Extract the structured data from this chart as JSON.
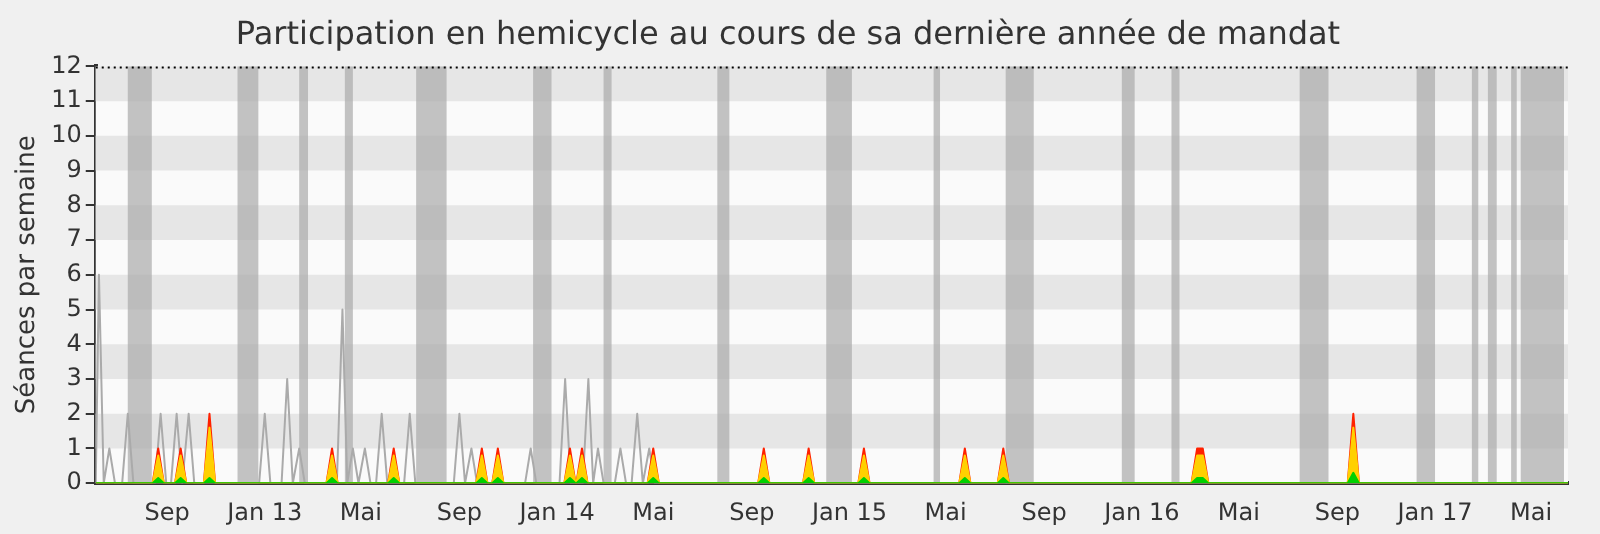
{
  "chart_data": {
    "type": "line",
    "title": "Participation en hemicycle au cours de sa dernière année de mandat",
    "ylabel": "Séances par semaine",
    "xlim": [
      "2012-06-04",
      "2017-06-16"
    ],
    "xticks": [
      {
        "value": "2012-09-01",
        "label": "Sep"
      },
      {
        "value": "2013-01-01",
        "label": "Jan 13"
      },
      {
        "value": "2013-05-01",
        "label": "Mai"
      },
      {
        "value": "2013-09-01",
        "label": "Sep"
      },
      {
        "value": "2014-01-01",
        "label": "Jan 14"
      },
      {
        "value": "2014-05-01",
        "label": "Mai"
      },
      {
        "value": "2014-09-01",
        "label": "Sep"
      },
      {
        "value": "2015-01-01",
        "label": "Jan 15"
      },
      {
        "value": "2015-05-01",
        "label": "Mai"
      },
      {
        "value": "2015-09-01",
        "label": "Sep"
      },
      {
        "value": "2016-01-01",
        "label": "Jan 16"
      },
      {
        "value": "2016-05-01",
        "label": "Mai"
      },
      {
        "value": "2016-09-01",
        "label": "Sep"
      },
      {
        "value": "2017-01-01",
        "label": "Jan 17"
      },
      {
        "value": "2017-05-01",
        "label": "Mai"
      }
    ],
    "ylim": [
      0,
      12
    ],
    "yticks": [
      0,
      1,
      2,
      3,
      4,
      5,
      6,
      7,
      8,
      9,
      10,
      11,
      12
    ],
    "grid": false,
    "legend": false,
    "marker": "none",
    "line_style": "solid",
    "bands": [
      {
        "axis": "y",
        "from": 11,
        "to": 12,
        "color": "#e6e6e6"
      },
      {
        "axis": "y",
        "from": 9,
        "to": 10,
        "color": "#e6e6e6"
      },
      {
        "axis": "y",
        "from": 7,
        "to": 8,
        "color": "#e6e6e6"
      },
      {
        "axis": "y",
        "from": 5,
        "to": 6,
        "color": "#e6e6e6"
      },
      {
        "axis": "y",
        "from": 3,
        "to": 4,
        "color": "#e6e6e6"
      },
      {
        "axis": "y",
        "from": 1,
        "to": 2,
        "color": "#e6e6e6"
      },
      {
        "axis": "x",
        "from": "2012-07-14",
        "to": "2012-08-13",
        "color": "#aaaaaa"
      },
      {
        "axis": "x",
        "from": "2012-11-28",
        "to": "2012-12-24",
        "color": "#aaaaaa"
      },
      {
        "axis": "x",
        "from": "2013-02-13",
        "to": "2013-02-24",
        "color": "#aaaaaa"
      },
      {
        "axis": "x",
        "from": "2013-04-11",
        "to": "2013-04-21",
        "color": "#aaaaaa"
      },
      {
        "axis": "x",
        "from": "2013-07-09",
        "to": "2013-08-16",
        "color": "#aaaaaa"
      },
      {
        "axis": "x",
        "from": "2013-12-02",
        "to": "2013-12-25",
        "color": "#aaaaaa"
      },
      {
        "axis": "x",
        "from": "2014-02-28",
        "to": "2014-03-10",
        "color": "#aaaaaa"
      },
      {
        "axis": "x",
        "from": "2014-07-20",
        "to": "2014-08-04",
        "color": "#aaaaaa"
      },
      {
        "axis": "x",
        "from": "2014-12-03",
        "to": "2015-01-04",
        "color": "#aaaaaa"
      },
      {
        "axis": "x",
        "from": "2015-04-16",
        "to": "2015-04-24",
        "color": "#aaaaaa"
      },
      {
        "axis": "x",
        "from": "2015-07-15",
        "to": "2015-08-19",
        "color": "#aaaaaa"
      },
      {
        "axis": "x",
        "from": "2015-12-07",
        "to": "2015-12-23",
        "color": "#aaaaaa"
      },
      {
        "axis": "x",
        "from": "2016-02-07",
        "to": "2016-02-17",
        "color": "#aaaaaa"
      },
      {
        "axis": "x",
        "from": "2016-07-16",
        "to": "2016-08-21",
        "color": "#aaaaaa"
      },
      {
        "axis": "x",
        "from": "2016-12-09",
        "to": "2017-01-01",
        "color": "#aaaaaa"
      },
      {
        "axis": "x",
        "from": "2017-02-16",
        "to": "2017-02-24",
        "color": "#aaaaaa"
      },
      {
        "axis": "x",
        "from": "2017-03-08",
        "to": "2017-03-19",
        "color": "#aaaaaa"
      },
      {
        "axis": "x",
        "from": "2017-04-06",
        "to": "2017-04-13",
        "color": "#aaaaaa"
      },
      {
        "axis": "x",
        "from": "2017-04-18",
        "to": "2017-06-11",
        "color": "#aaaaaa"
      }
    ],
    "series": [
      {
        "type": "line",
        "color": "#aaaaaa",
        "x": [
          "2012-06-04",
          "2012-06-08",
          "2012-06-14",
          "2012-06-21",
          "2012-06-28",
          "2012-07-07",
          "2012-07-14",
          "2012-07-21",
          "2012-08-17",
          "2012-08-24",
          "2012-08-31",
          "2012-09-06",
          "2012-09-13",
          "2012-09-20",
          "2012-09-28",
          "2012-10-05",
          "2012-10-17",
          "2012-10-24",
          "2012-10-31",
          "2012-12-25",
          "2013-01-01",
          "2013-01-08",
          "2013-01-22",
          "2013-01-29",
          "2013-02-05",
          "2013-02-13",
          "2013-02-20",
          "2013-04-01",
          "2013-04-08",
          "2013-04-14",
          "2013-04-21",
          "2013-04-28",
          "2013-05-06",
          "2013-05-13",
          "2013-05-20",
          "2013-05-27",
          "2013-06-03",
          "2013-06-24",
          "2013-07-01",
          "2013-07-08",
          "2013-08-25",
          "2013-09-01",
          "2013-09-08",
          "2013-09-16",
          "2013-09-23",
          "2013-11-22",
          "2013-11-29",
          "2013-12-06",
          "2014-01-04",
          "2014-01-11",
          "2014-01-18",
          "2014-02-02",
          "2014-02-09",
          "2014-02-15",
          "2014-02-21",
          "2014-02-28",
          "2014-03-14",
          "2014-03-21",
          "2014-03-28",
          "2014-04-04",
          "2014-04-11",
          "2014-04-18",
          "2014-04-26",
          "2014-05-03",
          "2017-06-16"
        ],
        "values": [
          0,
          6,
          0,
          1,
          0,
          0,
          2,
          0,
          0,
          2,
          0,
          0,
          2,
          0,
          2,
          0,
          0,
          null,
          0,
          0,
          2,
          0,
          0,
          3,
          0,
          1,
          0,
          0,
          5,
          0,
          1,
          0,
          1,
          0,
          0,
          2,
          0,
          0,
          2,
          0,
          0,
          2,
          0,
          1,
          0,
          0,
          1,
          0,
          0,
          3,
          0,
          0,
          3,
          0,
          1,
          0,
          0,
          1,
          0,
          0,
          2,
          0,
          1,
          0,
          0
        ]
      },
      {
        "type": "area",
        "color": "#ff2000",
        "x": [
          "2012-06-04",
          "2012-08-14",
          "2012-08-21",
          "2012-08-28",
          "2012-09-11",
          "2012-09-18",
          "2012-09-25",
          "2012-10-17",
          "2012-10-24",
          "2012-10-31",
          "2013-03-19",
          "2013-03-26",
          "2013-04-02",
          "2013-06-04",
          "2013-06-11",
          "2013-06-18",
          "2013-09-22",
          "2013-09-29",
          "2013-10-06",
          "2013-10-12",
          "2013-10-19",
          "2013-10-26",
          "2014-01-10",
          "2014-01-17",
          "2014-01-24",
          "2014-01-25",
          "2014-02-01",
          "2014-02-08",
          "2014-04-24",
          "2014-05-01",
          "2014-05-08",
          "2014-09-09",
          "2014-09-16",
          "2014-09-23",
          "2014-11-04",
          "2014-11-11",
          "2014-11-18",
          "2015-01-12",
          "2015-01-19",
          "2015-01-26",
          "2015-05-18",
          "2015-05-25",
          "2015-06-01",
          "2015-07-05",
          "2015-07-12",
          "2015-07-19",
          "2016-03-03",
          "2016-03-10",
          "2016-03-17",
          "2016-03-24",
          "2016-09-14",
          "2016-09-21",
          "2016-09-28",
          "2017-06-16"
        ],
        "values": [
          0,
          0,
          1,
          0,
          0,
          1,
          0,
          0,
          2,
          0,
          0,
          1,
          0,
          0,
          1,
          0,
          0,
          1,
          0,
          0,
          1,
          0,
          0,
          1,
          0,
          0,
          1,
          0,
          0,
          1,
          0,
          0,
          1,
          0,
          0,
          1,
          0,
          0,
          1,
          0,
          0,
          1,
          0,
          0,
          1,
          0,
          0,
          1,
          1,
          0,
          0,
          2,
          0,
          0
        ]
      },
      {
        "type": "area",
        "color": "#ffd000",
        "x": [
          "2012-06-04",
          "2012-08-14",
          "2012-08-21",
          "2012-08-28",
          "2012-09-11",
          "2012-09-18",
          "2012-09-25",
          "2012-10-17",
          "2012-10-24",
          "2012-10-31",
          "2013-03-19",
          "2013-03-26",
          "2013-04-02",
          "2013-06-04",
          "2013-06-11",
          "2013-06-18",
          "2013-09-22",
          "2013-09-29",
          "2013-10-06",
          "2013-10-12",
          "2013-10-19",
          "2013-10-26",
          "2014-01-10",
          "2014-01-17",
          "2014-01-24",
          "2014-01-25",
          "2014-02-01",
          "2014-02-08",
          "2014-04-24",
          "2014-05-01",
          "2014-05-08",
          "2014-09-09",
          "2014-09-16",
          "2014-09-23",
          "2014-11-04",
          "2014-11-11",
          "2014-11-18",
          "2015-01-12",
          "2015-01-19",
          "2015-01-26",
          "2015-05-18",
          "2015-05-25",
          "2015-06-01",
          "2015-07-05",
          "2015-07-12",
          "2015-07-19",
          "2016-03-03",
          "2016-03-10",
          "2016-03-17",
          "2016-03-24",
          "2016-09-14",
          "2016-09-21",
          "2016-09-28",
          "2017-06-16"
        ],
        "values": [
          0,
          0,
          0.8,
          0,
          0,
          0.8,
          0,
          0,
          1.6,
          0,
          0,
          0.8,
          0,
          0,
          0.8,
          0,
          0,
          0.8,
          0,
          0,
          0.8,
          0,
          0,
          0.8,
          0,
          0,
          0.8,
          0,
          0,
          0.8,
          0,
          0,
          0.8,
          0,
          0,
          0.8,
          0,
          0,
          0.8,
          0,
          0,
          0.8,
          0,
          0,
          0.8,
          0,
          0,
          0.8,
          0.8,
          0,
          0,
          1.6,
          0,
          0
        ]
      },
      {
        "type": "area",
        "color": "#00d000",
        "x": [
          "2012-06-04",
          "2012-08-14",
          "2012-08-21",
          "2012-08-28",
          "2012-09-11",
          "2012-09-18",
          "2012-09-25",
          "2012-10-17",
          "2012-10-24",
          "2012-10-31",
          "2013-03-19",
          "2013-03-26",
          "2013-04-02",
          "2013-06-04",
          "2013-06-11",
          "2013-06-18",
          "2013-09-22",
          "2013-09-29",
          "2013-10-06",
          "2013-10-12",
          "2013-10-19",
          "2013-10-26",
          "2014-01-10",
          "2014-01-17",
          "2014-01-24",
          "2014-01-25",
          "2014-02-01",
          "2014-02-08",
          "2014-04-24",
          "2014-05-01",
          "2014-05-08",
          "2014-09-09",
          "2014-09-16",
          "2014-09-23",
          "2014-11-04",
          "2014-11-11",
          "2014-11-18",
          "2015-01-12",
          "2015-01-19",
          "2015-01-26",
          "2015-05-18",
          "2015-05-25",
          "2015-06-01",
          "2015-07-05",
          "2015-07-12",
          "2015-07-19",
          "2016-03-03",
          "2016-03-10",
          "2016-03-17",
          "2016-03-24",
          "2016-09-14",
          "2016-09-21",
          "2016-09-28",
          "2017-06-16"
        ],
        "values": [
          0,
          0,
          0.15,
          0,
          0,
          0.15,
          0,
          0,
          0.15,
          0,
          0,
          0.15,
          0,
          0,
          0.15,
          0,
          0,
          0.15,
          0,
          0,
          0.15,
          0,
          0,
          0.15,
          0,
          0,
          0.15,
          0,
          0,
          0.15,
          0,
          0,
          0.15,
          0,
          0,
          0.15,
          0,
          0,
          0.15,
          0,
          0,
          0.15,
          0,
          0,
          0.15,
          0,
          0,
          0.15,
          0.15,
          0,
          0,
          0.3,
          0,
          0
        ]
      }
    ]
  }
}
